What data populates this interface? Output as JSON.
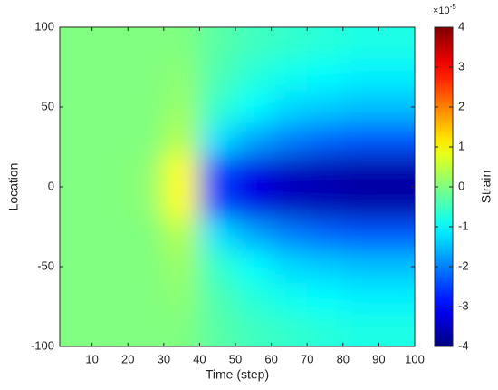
{
  "chart_data": {
    "type": "heatmap",
    "x": [
      5,
      15,
      25,
      35,
      45,
      55,
      65,
      75,
      85,
      95
    ],
    "y": [
      90,
      70,
      50,
      30,
      10,
      -10,
      -30,
      -50,
      -70,
      -90
    ],
    "z": [
      [
        0,
        0,
        0,
        0,
        -0.3,
        -0.5,
        -0.6,
        -0.7,
        -0.8,
        -0.8
      ],
      [
        0,
        0,
        0,
        0.1,
        -0.4,
        -0.7,
        -0.9,
        -1,
        -1.1,
        -1.1
      ],
      [
        0,
        0,
        0,
        0.2,
        -0.6,
        -1,
        -1.3,
        -1.4,
        -1.5,
        -1.5
      ],
      [
        0,
        0,
        0,
        0.4,
        -1.2,
        -1.7,
        -2,
        -2.2,
        -2.3,
        -2.3
      ],
      [
        0,
        0,
        0.1,
        1,
        -2.5,
        -3.2,
        -3.5,
        -3.6,
        -3.7,
        -3.7
      ],
      [
        0,
        0,
        0.1,
        1,
        -2.5,
        -3.2,
        -3.5,
        -3.6,
        -3.7,
        -3.7
      ],
      [
        0,
        0,
        0,
        0.4,
        -1.2,
        -1.7,
        -2,
        -2.2,
        -2.3,
        -2.3
      ],
      [
        0,
        0,
        0,
        0.2,
        -0.6,
        -1,
        -1.3,
        -1.4,
        -1.5,
        -1.5
      ],
      [
        0,
        0,
        0,
        0.1,
        -0.4,
        -0.7,
        -0.9,
        -1,
        -1.1,
        -1.1
      ],
      [
        0,
        0,
        0,
        0,
        -0.3,
        -0.5,
        -0.6,
        -0.7,
        -0.8,
        -0.8
      ]
    ],
    "colormap": "jet",
    "x_label": "Time (step)",
    "y_label": "Location",
    "colorbar_label": "Strain",
    "colorbar_multiplier": {
      "base": "×10",
      "exponent": "-5"
    },
    "xlim": [
      1,
      100
    ],
    "xticks": [
      10,
      20,
      30,
      40,
      50,
      60,
      70,
      80,
      90,
      100
    ],
    "ylim": [
      -100,
      100
    ],
    "yticks": [
      -100,
      -50,
      0,
      50,
      100
    ],
    "clim": [
      -4,
      4
    ],
    "cticks": [
      -4,
      -3,
      -2,
      -1,
      0,
      1,
      2,
      3,
      4
    ]
  }
}
